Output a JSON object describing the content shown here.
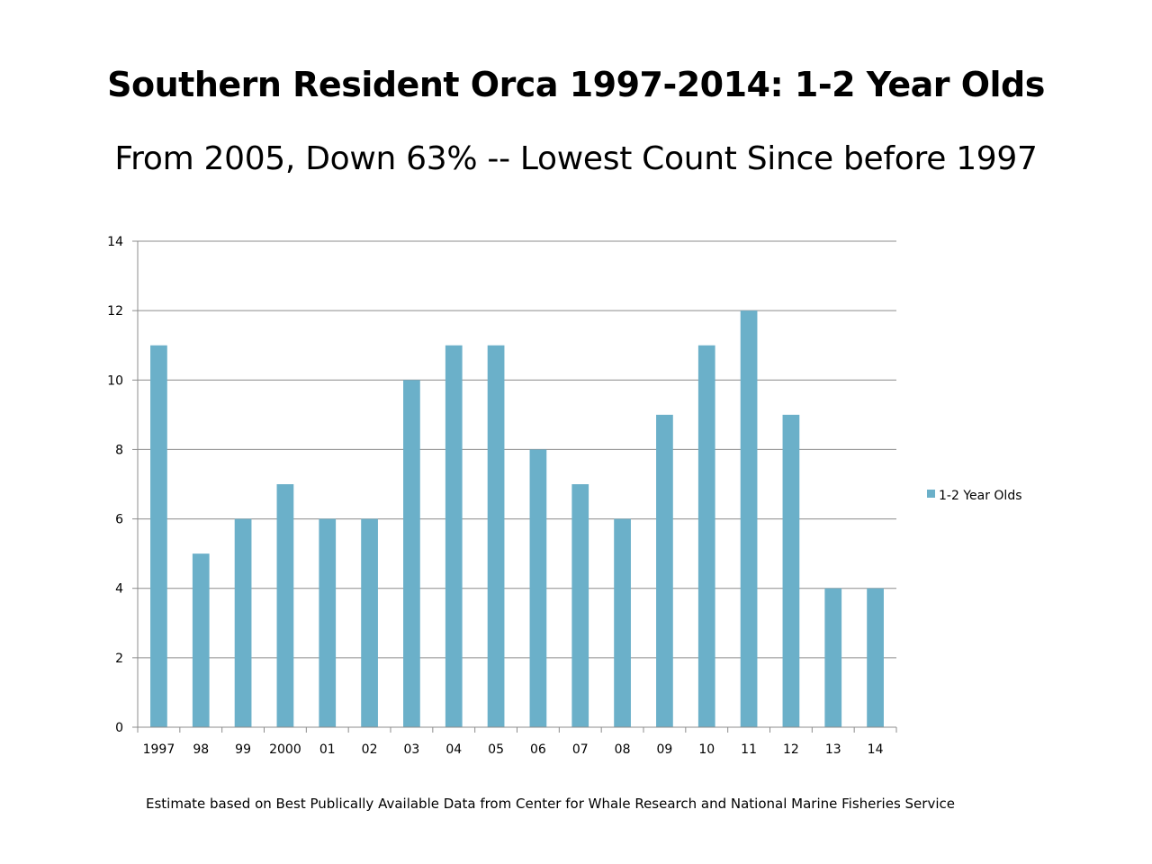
{
  "title": "Southern Resident Orca 1997-2014:  1-2 Year Olds",
  "subtitle": "From 2005, Down 63% -- Lowest Count Since before 1997",
  "footnote": "Estimate based on Best Publically Available Data from Center for Whale Research and National Marine Fisheries Service",
  "colors": {
    "bar": "#6bb0c9",
    "grid": "#8c8c8c",
    "axis": "#8c8c8c"
  },
  "chart_data": {
    "type": "bar",
    "categories": [
      "1997",
      "98",
      "99",
      "2000",
      "01",
      "02",
      "03",
      "04",
      "05",
      "06",
      "07",
      "08",
      "09",
      "10",
      "11",
      "12",
      "13",
      "14"
    ],
    "series": [
      {
        "name": "1-2 Year Olds",
        "values": [
          11,
          5,
          6,
          7,
          6,
          6,
          10,
          11,
          11,
          8,
          7,
          6,
          9,
          11,
          12,
          9,
          4,
          4
        ]
      }
    ],
    "yticks": [
      "0",
      "2",
      "4",
      "6",
      "8",
      "10",
      "12",
      "14"
    ],
    "ylim": [
      0,
      14
    ],
    "grid": true,
    "legend": "right"
  }
}
